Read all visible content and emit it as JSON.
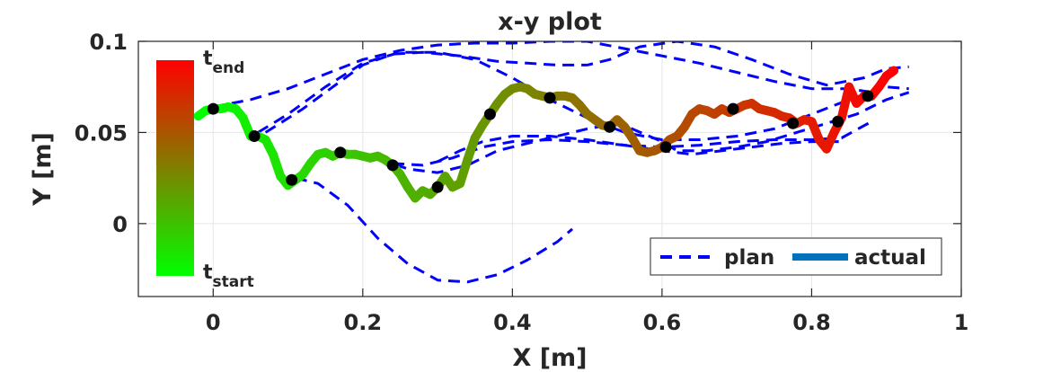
{
  "chart_data": {
    "type": "line",
    "title": "x-y plot",
    "xlabel": "X [m]",
    "ylabel": "Y [m]",
    "xlim": [
      -0.1,
      1.0
    ],
    "ylim": [
      -0.04,
      0.1
    ],
    "xticks": [
      0,
      0.2,
      0.4,
      0.6,
      0.8,
      1
    ],
    "xtick_labels": [
      "0",
      "0.2",
      "0.4",
      "0.6",
      "0.8",
      "1"
    ],
    "yticks": [
      0,
      0.05,
      0.1
    ],
    "ytick_labels": [
      "0",
      "0.05",
      "0.1"
    ],
    "grid": true,
    "legend": {
      "placement": "bottom-right",
      "entries": [
        {
          "label": "plan",
          "style": "dashed",
          "color": "#0000ff"
        },
        {
          "label": "actual",
          "style": "solid",
          "color": "#0072bd"
        }
      ]
    },
    "colorbar": {
      "top_label": "t",
      "top_sub": "end",
      "bottom_label": "t",
      "bottom_sub": "start",
      "color_top": "#ff0000",
      "color_bottom": "#00ff00"
    },
    "series": [
      {
        "name": "plan",
        "style": "dashed",
        "color": "#0000ff",
        "paths": [
          [
            [
              0,
              0.064
            ],
            [
              0.05,
              0.068
            ],
            [
              0.1,
              0.074
            ],
            [
              0.15,
              0.082
            ],
            [
              0.2,
              0.09
            ],
            [
              0.25,
              0.095
            ],
            [
              0.3,
              0.098
            ],
            [
              0.35,
              0.099
            ],
            [
              0.4,
              0.099
            ],
            [
              0.45,
              0.1
            ],
            [
              0.5,
              0.1
            ],
            [
              0.55,
              0.096
            ],
            [
              0.6,
              0.092
            ],
            [
              0.65,
              0.088
            ],
            [
              0.7,
              0.083
            ],
            [
              0.75,
              0.078
            ],
            [
              0.8,
              0.074
            ],
            [
              0.85,
              0.074
            ],
            [
              0.88,
              0.072
            ]
          ],
          [
            [
              0.06,
              0.05
            ],
            [
              0.1,
              0.06
            ],
            [
              0.15,
              0.075
            ],
            [
              0.2,
              0.088
            ],
            [
              0.25,
              0.094
            ],
            [
              0.3,
              0.094
            ],
            [
              0.35,
              0.09
            ],
            [
              0.4,
              0.08
            ],
            [
              0.45,
              0.068
            ],
            [
              0.5,
              0.058
            ],
            [
              0.55,
              0.05
            ],
            [
              0.6,
              0.046
            ],
            [
              0.65,
              0.046
            ],
            [
              0.7,
              0.048
            ],
            [
              0.75,
              0.052
            ],
            [
              0.8,
              0.06
            ],
            [
              0.85,
              0.068
            ],
            [
              0.9,
              0.075
            ],
            [
              0.93,
              0.074
            ]
          ],
          [
            [
              0.07,
              0.05
            ],
            [
              0.12,
              0.063
            ],
            [
              0.16,
              0.075
            ],
            [
              0.2,
              0.087
            ],
            [
              0.24,
              0.093
            ],
            [
              0.28,
              0.094
            ],
            [
              0.33,
              0.092
            ],
            [
              0.38,
              0.089
            ],
            [
              0.42,
              0.088
            ],
            [
              0.46,
              0.087
            ],
            [
              0.5,
              0.087
            ],
            [
              0.53,
              0.09
            ],
            [
              0.57,
              0.097
            ],
            [
              0.62,
              0.1
            ],
            [
              0.67,
              0.097
            ],
            [
              0.72,
              0.09
            ],
            [
              0.77,
              0.082
            ],
            [
              0.82,
              0.076
            ],
            [
              0.87,
              0.08
            ],
            [
              0.9,
              0.085
            ],
            [
              0.93,
              0.086
            ]
          ],
          [
            [
              0.11,
              0.025
            ],
            [
              0.14,
              0.022
            ],
            [
              0.18,
              0.01
            ],
            [
              0.22,
              -0.008
            ],
            [
              0.26,
              -0.022
            ],
            [
              0.3,
              -0.031
            ],
            [
              0.34,
              -0.032
            ],
            [
              0.38,
              -0.028
            ],
            [
              0.42,
              -0.02
            ],
            [
              0.46,
              -0.01
            ],
            [
              0.48,
              -0.003
            ]
          ],
          [
            [
              0.17,
              0.04
            ],
            [
              0.22,
              0.036
            ],
            [
              0.26,
              0.03
            ],
            [
              0.3,
              0.028
            ],
            [
              0.34,
              0.032
            ],
            [
              0.38,
              0.04
            ],
            [
              0.42,
              0.044
            ],
            [
              0.46,
              0.048
            ],
            [
              0.5,
              0.052
            ],
            [
              0.54,
              0.055
            ],
            [
              0.56,
              0.052
            ],
            [
              0.6,
              0.045
            ],
            [
              0.62,
              0.04
            ],
            [
              0.66,
              0.04
            ],
            [
              0.7,
              0.042
            ],
            [
              0.74,
              0.045
            ],
            [
              0.78,
              0.05
            ],
            [
              0.82,
              0.055
            ],
            [
              0.86,
              0.06
            ],
            [
              0.9,
              0.068
            ],
            [
              0.93,
              0.072
            ]
          ],
          [
            [
              0.24,
              0.033
            ],
            [
              0.28,
              0.032
            ],
            [
              0.32,
              0.036
            ],
            [
              0.36,
              0.042
            ],
            [
              0.4,
              0.045
            ],
            [
              0.45,
              0.046
            ],
            [
              0.5,
              0.045
            ],
            [
              0.55,
              0.043
            ],
            [
              0.6,
              0.042
            ],
            [
              0.65,
              0.043
            ],
            [
              0.7,
              0.045
            ],
            [
              0.75,
              0.046
            ],
            [
              0.8,
              0.046
            ],
            [
              0.84,
              0.047
            ],
            [
              0.88,
              0.056
            ]
          ],
          [
            [
              0.3,
              0.034
            ],
            [
              0.33,
              0.04
            ],
            [
              0.36,
              0.045
            ],
            [
              0.4,
              0.048
            ],
            [
              0.45,
              0.048
            ],
            [
              0.5,
              0.046
            ],
            [
              0.55,
              0.043
            ],
            [
              0.6,
              0.04
            ],
            [
              0.64,
              0.038
            ],
            [
              0.68,
              0.04
            ],
            [
              0.72,
              0.042
            ],
            [
              0.76,
              0.044
            ],
            [
              0.8,
              0.045
            ],
            [
              0.84,
              0.045
            ]
          ]
        ]
      },
      {
        "name": "actual",
        "style": "solid",
        "color_start": "#00ff00",
        "color_end": "#ff0000",
        "points": [
          [
            -0.02,
            0.059
          ],
          [
            -0.01,
            0.062
          ],
          [
            0,
            0.063
          ],
          [
            0.01,
            0.063
          ],
          [
            0.02,
            0.064
          ],
          [
            0.03,
            0.063
          ],
          [
            0.04,
            0.058
          ],
          [
            0.05,
            0.048
          ],
          [
            0.06,
            0.048
          ],
          [
            0.07,
            0.046
          ],
          [
            0.08,
            0.038
          ],
          [
            0.09,
            0.026
          ],
          [
            0.1,
            0.021
          ],
          [
            0.11,
            0.024
          ],
          [
            0.12,
            0.027
          ],
          [
            0.13,
            0.033
          ],
          [
            0.14,
            0.038
          ],
          [
            0.15,
            0.039
          ],
          [
            0.16,
            0.037
          ],
          [
            0.17,
            0.039
          ],
          [
            0.18,
            0.038
          ],
          [
            0.19,
            0.038
          ],
          [
            0.2,
            0.037
          ],
          [
            0.21,
            0.036
          ],
          [
            0.22,
            0.037
          ],
          [
            0.23,
            0.035
          ],
          [
            0.24,
            0.032
          ],
          [
            0.25,
            0.027
          ],
          [
            0.26,
            0.02
          ],
          [
            0.27,
            0.014
          ],
          [
            0.28,
            0.018
          ],
          [
            0.29,
            0.016
          ],
          [
            0.3,
            0.02
          ],
          [
            0.31,
            0.026
          ],
          [
            0.32,
            0.02
          ],
          [
            0.33,
            0.022
          ],
          [
            0.34,
            0.035
          ],
          [
            0.35,
            0.047
          ],
          [
            0.36,
            0.054
          ],
          [
            0.37,
            0.06
          ],
          [
            0.38,
            0.066
          ],
          [
            0.39,
            0.071
          ],
          [
            0.4,
            0.074
          ],
          [
            0.41,
            0.075
          ],
          [
            0.42,
            0.074
          ],
          [
            0.43,
            0.071
          ],
          [
            0.44,
            0.07
          ],
          [
            0.45,
            0.069
          ],
          [
            0.46,
            0.07
          ],
          [
            0.47,
            0.07
          ],
          [
            0.48,
            0.069
          ],
          [
            0.49,
            0.065
          ],
          [
            0.5,
            0.06
          ],
          [
            0.51,
            0.057
          ],
          [
            0.52,
            0.054
          ],
          [
            0.53,
            0.053
          ],
          [
            0.54,
            0.057
          ],
          [
            0.55,
            0.053
          ],
          [
            0.56,
            0.047
          ],
          [
            0.57,
            0.04
          ],
          [
            0.58,
            0.039
          ],
          [
            0.59,
            0.04
          ],
          [
            0.6,
            0.042
          ],
          [
            0.61,
            0.046
          ],
          [
            0.62,
            0.048
          ],
          [
            0.63,
            0.053
          ],
          [
            0.64,
            0.06
          ],
          [
            0.65,
            0.063
          ],
          [
            0.66,
            0.062
          ],
          [
            0.67,
            0.06
          ],
          [
            0.68,
            0.063
          ],
          [
            0.69,
            0.061
          ],
          [
            0.7,
            0.063
          ],
          [
            0.71,
            0.065
          ],
          [
            0.72,
            0.066
          ],
          [
            0.73,
            0.063
          ],
          [
            0.74,
            0.062
          ],
          [
            0.75,
            0.061
          ],
          [
            0.76,
            0.059
          ],
          [
            0.77,
            0.058
          ],
          [
            0.78,
            0.055
          ],
          [
            0.79,
            0.057
          ],
          [
            0.8,
            0.056
          ],
          [
            0.81,
            0.046
          ],
          [
            0.82,
            0.041
          ],
          [
            0.83,
            0.05
          ],
          [
            0.84,
            0.058
          ],
          [
            0.85,
            0.075
          ],
          [
            0.86,
            0.066
          ],
          [
            0.87,
            0.07
          ],
          [
            0.88,
            0.07
          ],
          [
            0.89,
            0.075
          ],
          [
            0.9,
            0.081
          ],
          [
            0.91,
            0.084
          ]
        ],
        "markers": [
          [
            0,
            0.063
          ],
          [
            0.055,
            0.048
          ],
          [
            0.105,
            0.024
          ],
          [
            0.17,
            0.039
          ],
          [
            0.24,
            0.032
          ],
          [
            0.3,
            0.02
          ],
          [
            0.37,
            0.06
          ],
          [
            0.45,
            0.069
          ],
          [
            0.53,
            0.053
          ],
          [
            0.605,
            0.042
          ],
          [
            0.695,
            0.063
          ],
          [
            0.775,
            0.055
          ],
          [
            0.835,
            0.056
          ],
          [
            0.875,
            0.07
          ]
        ]
      }
    ]
  }
}
